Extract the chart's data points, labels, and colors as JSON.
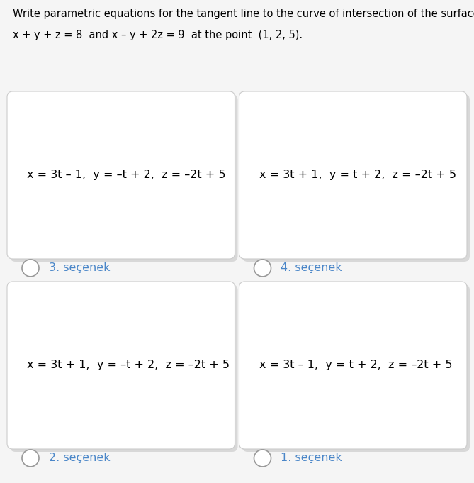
{
  "title_line1": "Write parametric equations for the tangent line to the curve of intersection of the surfaces",
  "title_line2": "x + y + z = 8  and x – y + 2z = 9  at the point  (1, 2, 5).",
  "bg_color": "#f5f5f5",
  "card_bg": "#ffffff",
  "card_border": "#cccccc",
  "options": [
    {
      "eq": "x = 3t – 1,  y = –t + 2,  z = –2t + 5",
      "label": "3. seçenek",
      "col": 0,
      "row": 1
    },
    {
      "eq": "x = 3t + 1,  y = t + 2,  z = –2t + 5",
      "label": "4. seçenek",
      "col": 1,
      "row": 1
    },
    {
      "eq": "x = 3t + 1,  y = –t + 2,  z = –2t + 5",
      "label": "2. seçenek",
      "col": 0,
      "row": 0
    },
    {
      "eq": "x = 3t – 1,  y = t + 2,  z = –2t + 5",
      "label": "1. seçenek",
      "col": 1,
      "row": 0
    }
  ],
  "label_color": "#4a86c8",
  "eq_color": "#000000",
  "title_color": "#000000",
  "title_fontsize": 10.5,
  "eq_fontsize": 11.5,
  "label_fontsize": 11.5
}
